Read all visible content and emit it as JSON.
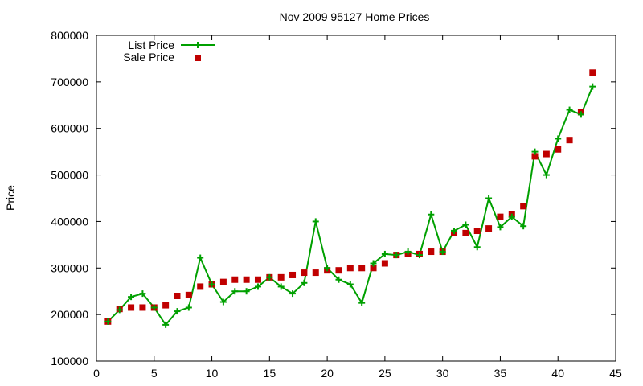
{
  "chart_data": {
    "type": "line",
    "title": "Nov 2009 95127 Home Prices",
    "xlabel": "",
    "ylabel": "Price",
    "xlim": [
      0,
      45
    ],
    "ylim": [
      100000,
      800000
    ],
    "xticks": [
      0,
      5,
      10,
      15,
      20,
      25,
      30,
      35,
      40,
      45
    ],
    "yticks": [
      100000,
      200000,
      300000,
      400000,
      500000,
      600000,
      700000,
      800000
    ],
    "grid": false,
    "legend_position": "top-left",
    "series": [
      {
        "name": "List Price",
        "style": "line+cross",
        "color": "#00a000",
        "x": [
          1,
          2,
          3,
          4,
          5,
          6,
          7,
          8,
          9,
          10,
          11,
          12,
          13,
          14,
          15,
          16,
          17,
          18,
          19,
          20,
          21,
          22,
          23,
          24,
          25,
          26,
          27,
          28,
          29,
          30,
          31,
          32,
          33,
          34,
          35,
          36,
          37,
          38,
          39,
          40,
          41,
          42,
          43
        ],
        "y": [
          185000,
          210000,
          238000,
          245000,
          215000,
          178000,
          207000,
          215000,
          322000,
          265000,
          227000,
          250000,
          250000,
          260000,
          280000,
          260000,
          245000,
          268000,
          400000,
          300000,
          275000,
          265000,
          225000,
          310000,
          330000,
          328000,
          335000,
          328000,
          415000,
          335000,
          380000,
          393000,
          345000,
          450000,
          388000,
          410000,
          390000,
          550000,
          500000,
          578000,
          640000,
          630000,
          690000
        ]
      },
      {
        "name": "Sale Price",
        "style": "square",
        "color": "#c00000",
        "x": [
          1,
          2,
          3,
          4,
          5,
          6,
          7,
          8,
          9,
          10,
          11,
          12,
          13,
          14,
          15,
          16,
          17,
          18,
          19,
          20,
          21,
          22,
          23,
          24,
          25,
          26,
          27,
          28,
          29,
          30,
          31,
          32,
          33,
          34,
          35,
          36,
          37,
          38,
          39,
          40,
          41,
          42,
          43
        ],
        "y": [
          185000,
          212000,
          215000,
          215000,
          215000,
          220000,
          240000,
          242000,
          260000,
          265000,
          270000,
          275000,
          275000,
          275000,
          280000,
          280000,
          285000,
          290000,
          290000,
          295000,
          295000,
          300000,
          300000,
          300000,
          310000,
          328000,
          330000,
          330000,
          335000,
          335000,
          375000,
          375000,
          380000,
          385000,
          410000,
          415000,
          433000,
          540000,
          545000,
          555000,
          575000,
          635000,
          720000
        ]
      }
    ]
  }
}
